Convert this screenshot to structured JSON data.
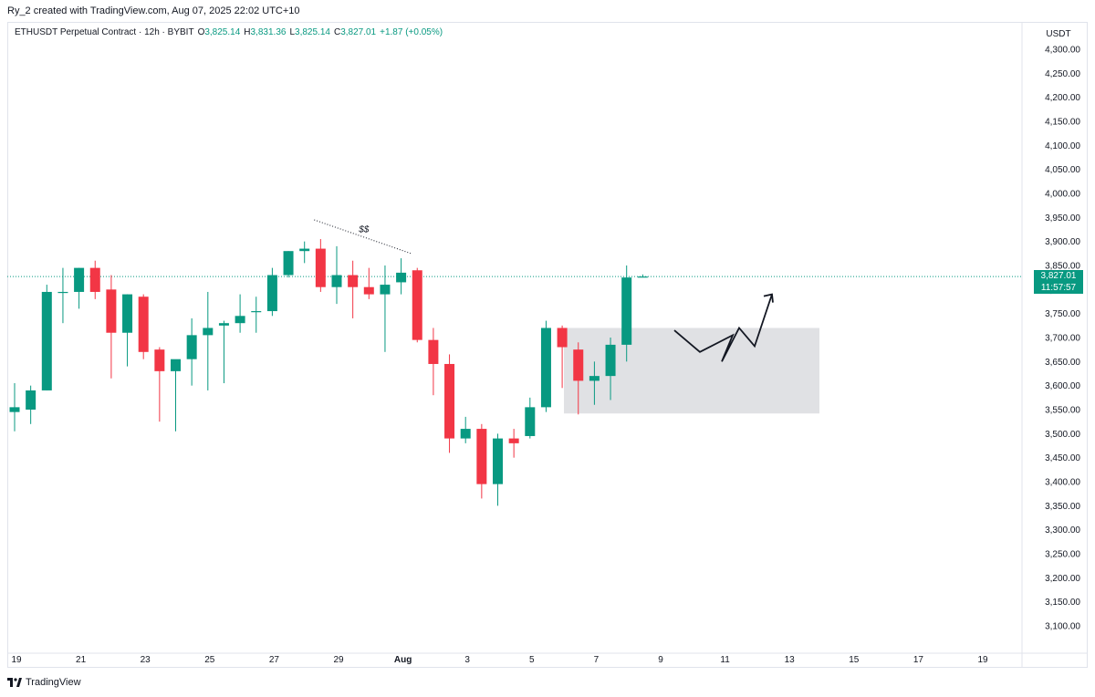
{
  "header": {
    "text": "Ry_2 created with TradingView.com, Aug 07, 2025 22:02 UTC+10"
  },
  "legend": {
    "symbol": "ETHUSDT Perpetual Contract · 12h · BYBIT",
    "o_label": "O",
    "o": "3,825.14",
    "h_label": "H",
    "h": "3,831.36",
    "l_label": "L",
    "l": "3,825.14",
    "c_label": "C",
    "c": "3,827.01",
    "change": "+1.87 (+0.05%)"
  },
  "axis": {
    "currency": "USDT"
  },
  "current_price": {
    "price": "3,827.01",
    "countdown": "11:57:57"
  },
  "annotation": {
    "label": "$$"
  },
  "footer": {
    "brand": "TradingView"
  },
  "colors": {
    "up": "#089981",
    "down": "#f23645",
    "grid_text": "#131722",
    "zone": "#e0e1e4"
  },
  "chart_data": {
    "type": "candlestick",
    "title": "ETHUSDT Perpetual Contract · 12h · BYBIT",
    "ylim": [
      3075,
      4330
    ],
    "yticks": [
      3100,
      3150,
      3200,
      3250,
      3300,
      3350,
      3400,
      3450,
      3500,
      3550,
      3600,
      3650,
      3700,
      3750,
      3800,
      3850,
      3900,
      3950,
      4000,
      4050,
      4100,
      4150,
      4200,
      4250,
      4300
    ],
    "ytick_labels": [
      "3,100.00",
      "3,150.00",
      "3,200.00",
      "3,250.00",
      "3,300.00",
      "3,350.00",
      "3,400.00",
      "3,450.00",
      "3,500.00",
      "3,550.00",
      "3,600.00",
      "3,650.00",
      "3,700.00",
      "3,750.00",
      "3,800.00",
      "3,850.00",
      "3,900.00",
      "3,950.00",
      "4,000.00",
      "4,050.00",
      "4,100.00",
      "4,150.00",
      "4,200.00",
      "4,250.00",
      "4,300.00"
    ],
    "xlim": [
      -0.1,
      34.5
    ],
    "xticks": [
      {
        "i": 0,
        "label": "19"
      },
      {
        "i": 4,
        "label": "21"
      },
      {
        "i": 8,
        "label": "23"
      },
      {
        "i": 12,
        "label": "25"
      },
      {
        "i": 16,
        "label": "27"
      },
      {
        "i": 20,
        "label": "29"
      },
      {
        "i": 24,
        "label": "Aug"
      },
      {
        "i": 28,
        "label": "3"
      },
      {
        "i": 32,
        "label": "5"
      },
      {
        "i": 36,
        "label": "7"
      },
      {
        "i": 40,
        "label": "9"
      },
      {
        "i": 44,
        "label": "11"
      },
      {
        "i": 48,
        "label": "13"
      },
      {
        "i": 52,
        "label": "15"
      },
      {
        "i": 56,
        "label": "17"
      },
      {
        "i": 60,
        "label": "19"
      }
    ],
    "bar_unit": 0.5,
    "candles": [
      {
        "o": 3545,
        "h": 3605,
        "l": 3505,
        "c": 3555
      },
      {
        "o": 3550,
        "h": 3600,
        "l": 3520,
        "c": 3590
      },
      {
        "o": 3590,
        "h": 3810,
        "l": 3590,
        "c": 3795
      },
      {
        "o": 3795,
        "h": 3845,
        "l": 3730,
        "c": 3795
      },
      {
        "o": 3795,
        "h": 3845,
        "l": 3760,
        "c": 3845
      },
      {
        "o": 3845,
        "h": 3860,
        "l": 3780,
        "c": 3795
      },
      {
        "o": 3800,
        "h": 3830,
        "l": 3615,
        "c": 3710
      },
      {
        "o": 3710,
        "h": 3790,
        "l": 3640,
        "c": 3790
      },
      {
        "o": 3785,
        "h": 3790,
        "l": 3655,
        "c": 3670
      },
      {
        "o": 3675,
        "h": 3680,
        "l": 3525,
        "c": 3630
      },
      {
        "o": 3630,
        "h": 3650,
        "l": 3505,
        "c": 3655
      },
      {
        "o": 3655,
        "h": 3740,
        "l": 3600,
        "c": 3705
      },
      {
        "o": 3705,
        "h": 3795,
        "l": 3590,
        "c": 3720
      },
      {
        "o": 3725,
        "h": 3735,
        "l": 3605,
        "c": 3730
      },
      {
        "o": 3730,
        "h": 3790,
        "l": 3710,
        "c": 3745
      },
      {
        "o": 3755,
        "h": 3785,
        "l": 3710,
        "c": 3755
      },
      {
        "o": 3755,
        "h": 3845,
        "l": 3745,
        "c": 3830
      },
      {
        "o": 3830,
        "h": 3880,
        "l": 3825,
        "c": 3880
      },
      {
        "o": 3880,
        "h": 3900,
        "l": 3855,
        "c": 3885
      },
      {
        "o": 3885,
        "h": 3905,
        "l": 3795,
        "c": 3805
      },
      {
        "o": 3805,
        "h": 3890,
        "l": 3770,
        "c": 3830
      },
      {
        "o": 3830,
        "h": 3860,
        "l": 3740,
        "c": 3805
      },
      {
        "o": 3805,
        "h": 3845,
        "l": 3780,
        "c": 3790
      },
      {
        "o": 3790,
        "h": 3850,
        "l": 3670,
        "c": 3810
      },
      {
        "o": 3815,
        "h": 3865,
        "l": 3790,
        "c": 3835
      },
      {
        "o": 3840,
        "h": 3845,
        "l": 3690,
        "c": 3695
      },
      {
        "o": 3695,
        "h": 3720,
        "l": 3580,
        "c": 3645
      },
      {
        "o": 3645,
        "h": 3665,
        "l": 3460,
        "c": 3490
      },
      {
        "o": 3490,
        "h": 3535,
        "l": 3480,
        "c": 3510
      },
      {
        "o": 3510,
        "h": 3520,
        "l": 3365,
        "c": 3395
      },
      {
        "o": 3395,
        "h": 3500,
        "l": 3350,
        "c": 3490
      },
      {
        "o": 3490,
        "h": 3510,
        "l": 3450,
        "c": 3480
      },
      {
        "o": 3495,
        "h": 3575,
        "l": 3490,
        "c": 3555
      },
      {
        "o": 3555,
        "h": 3735,
        "l": 3545,
        "c": 3720
      },
      {
        "o": 3720,
        "h": 3725,
        "l": 3595,
        "c": 3680
      },
      {
        "o": 3675,
        "h": 3690,
        "l": 3540,
        "c": 3610
      },
      {
        "o": 3610,
        "h": 3650,
        "l": 3560,
        "c": 3620
      },
      {
        "o": 3620,
        "h": 3700,
        "l": 3570,
        "c": 3685
      },
      {
        "o": 3685,
        "h": 3850,
        "l": 3650,
        "c": 3825
      },
      {
        "o": 3825.14,
        "h": 3831.36,
        "l": 3825.14,
        "c": 3827.01
      }
    ],
    "zone": {
      "x_from": 5.1,
      "x_to": 13.0,
      "y_low": 3542,
      "y_high": 3720
    },
    "dotted_line": {
      "from": {
        "x": 2.3,
        "y": 3945
      },
      "to": {
        "x": 6.5,
        "y": 3875
      }
    },
    "projection_path": [
      {
        "x": 8.5,
        "y": 3715
      },
      {
        "x": 9.0,
        "y": 3670
      },
      {
        "x": 9.55,
        "y": 3705
      },
      {
        "x": 10.05,
        "y": 3650
      },
      {
        "x": 10.6,
        "y": 3720
      },
      {
        "x": 11.05,
        "y": 3682
      },
      {
        "x": 11.6,
        "y": 3790
      }
    ],
    "last_price": 3827.01
  }
}
